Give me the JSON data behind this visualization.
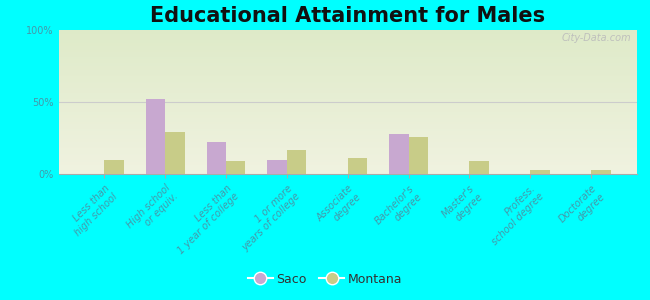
{
  "title": "Educational Attainment for Males",
  "categories": [
    "Less than\nhigh school",
    "High school\nor equiv.",
    "Less than\n1 year of college",
    "1 or more\nyears of college",
    "Associate\ndegree",
    "Bachelor's\ndegree",
    "Master's\ndegree",
    "Profess.\nschool degree",
    "Doctorate\ndegree"
  ],
  "saco_values": [
    0,
    52,
    22,
    10,
    0,
    28,
    0,
    0,
    0
  ],
  "montana_values": [
    10,
    29,
    9,
    17,
    11,
    26,
    9,
    3,
    3
  ],
  "saco_color": "#c8a8d0",
  "montana_color": "#c8cc88",
  "background_color": "#00ffff",
  "plot_bg_top": "#deeac8",
  "plot_bg_bottom": "#f0f2e0",
  "ylim": [
    0,
    100
  ],
  "yticks": [
    0,
    50,
    100
  ],
  "ytick_labels": [
    "0%",
    "50%",
    "100%"
  ],
  "watermark": "City-Data.com",
  "legend_labels": [
    "Saco",
    "Montana"
  ],
  "title_fontsize": 15,
  "tick_fontsize": 7,
  "label_color": "#4499aa"
}
